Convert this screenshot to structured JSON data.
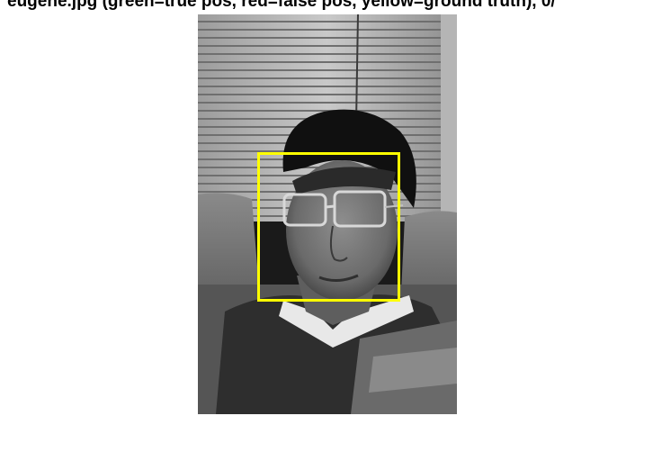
{
  "figure": {
    "title": "eugene.jpg   (green=true pos, red=false pos, yellow=ground truth), 0/"
  },
  "photo": {
    "description_icon": "grayscale-portrait-photo"
  },
  "annotations": {
    "ground_truth_color": "#ffff00",
    "detections_shown": 0
  }
}
